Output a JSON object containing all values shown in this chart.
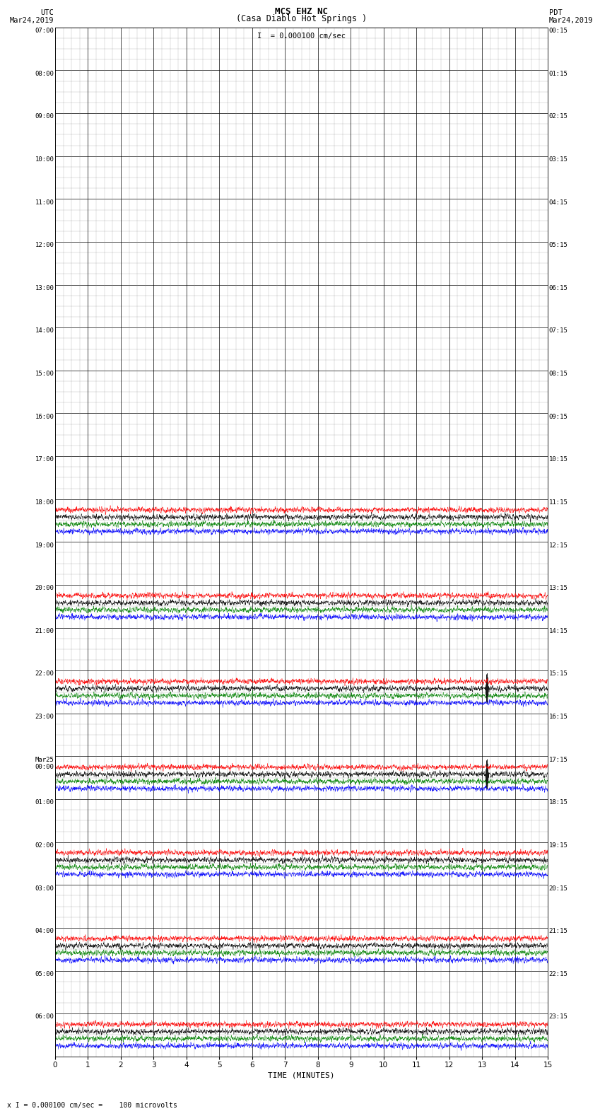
{
  "title_line1": "MCS EHZ NC",
  "title_line2": "(Casa Diablo Hot Springs )",
  "scale_label": "I  = 0.000100 cm/sec",
  "footer_label": "x I = 0.000100 cm/sec =    100 microvolts",
  "utc_label": "UTC\nMar24,2019",
  "pdt_label": "PDT\nMar24,2019",
  "xlabel": "TIME (MINUTES)",
  "left_times": [
    "07:00",
    "08:00",
    "09:00",
    "10:00",
    "11:00",
    "12:00",
    "13:00",
    "14:00",
    "15:00",
    "16:00",
    "17:00",
    "18:00",
    "19:00",
    "20:00",
    "21:00",
    "22:00",
    "23:00",
    "Mar25\n00:00",
    "01:00",
    "02:00",
    "03:00",
    "04:00",
    "05:00",
    "06:00"
  ],
  "right_times": [
    "00:15",
    "01:15",
    "02:15",
    "03:15",
    "04:15",
    "05:15",
    "06:15",
    "07:15",
    "08:15",
    "09:15",
    "10:15",
    "11:15",
    "12:15",
    "13:15",
    "14:15",
    "15:15",
    "16:15",
    "17:15",
    "18:15",
    "19:15",
    "20:15",
    "21:15",
    "22:15",
    "23:15"
  ],
  "n_rows": 24,
  "n_quiet_rows": 17,
  "n_active_rows": 7,
  "n_minutes": 15,
  "bg_color": "#ffffff",
  "xmin": 0,
  "xmax": 15,
  "xticks": [
    0,
    1,
    2,
    3,
    4,
    5,
    6,
    7,
    8,
    9,
    10,
    11,
    12,
    13,
    14,
    15
  ],
  "active_colors": [
    "#0000ff",
    "#008000",
    "#000000",
    "#ff0000"
  ],
  "quiet_color": "#000000",
  "sub_grid_color": "#888888",
  "main_grid_color": "#000000"
}
